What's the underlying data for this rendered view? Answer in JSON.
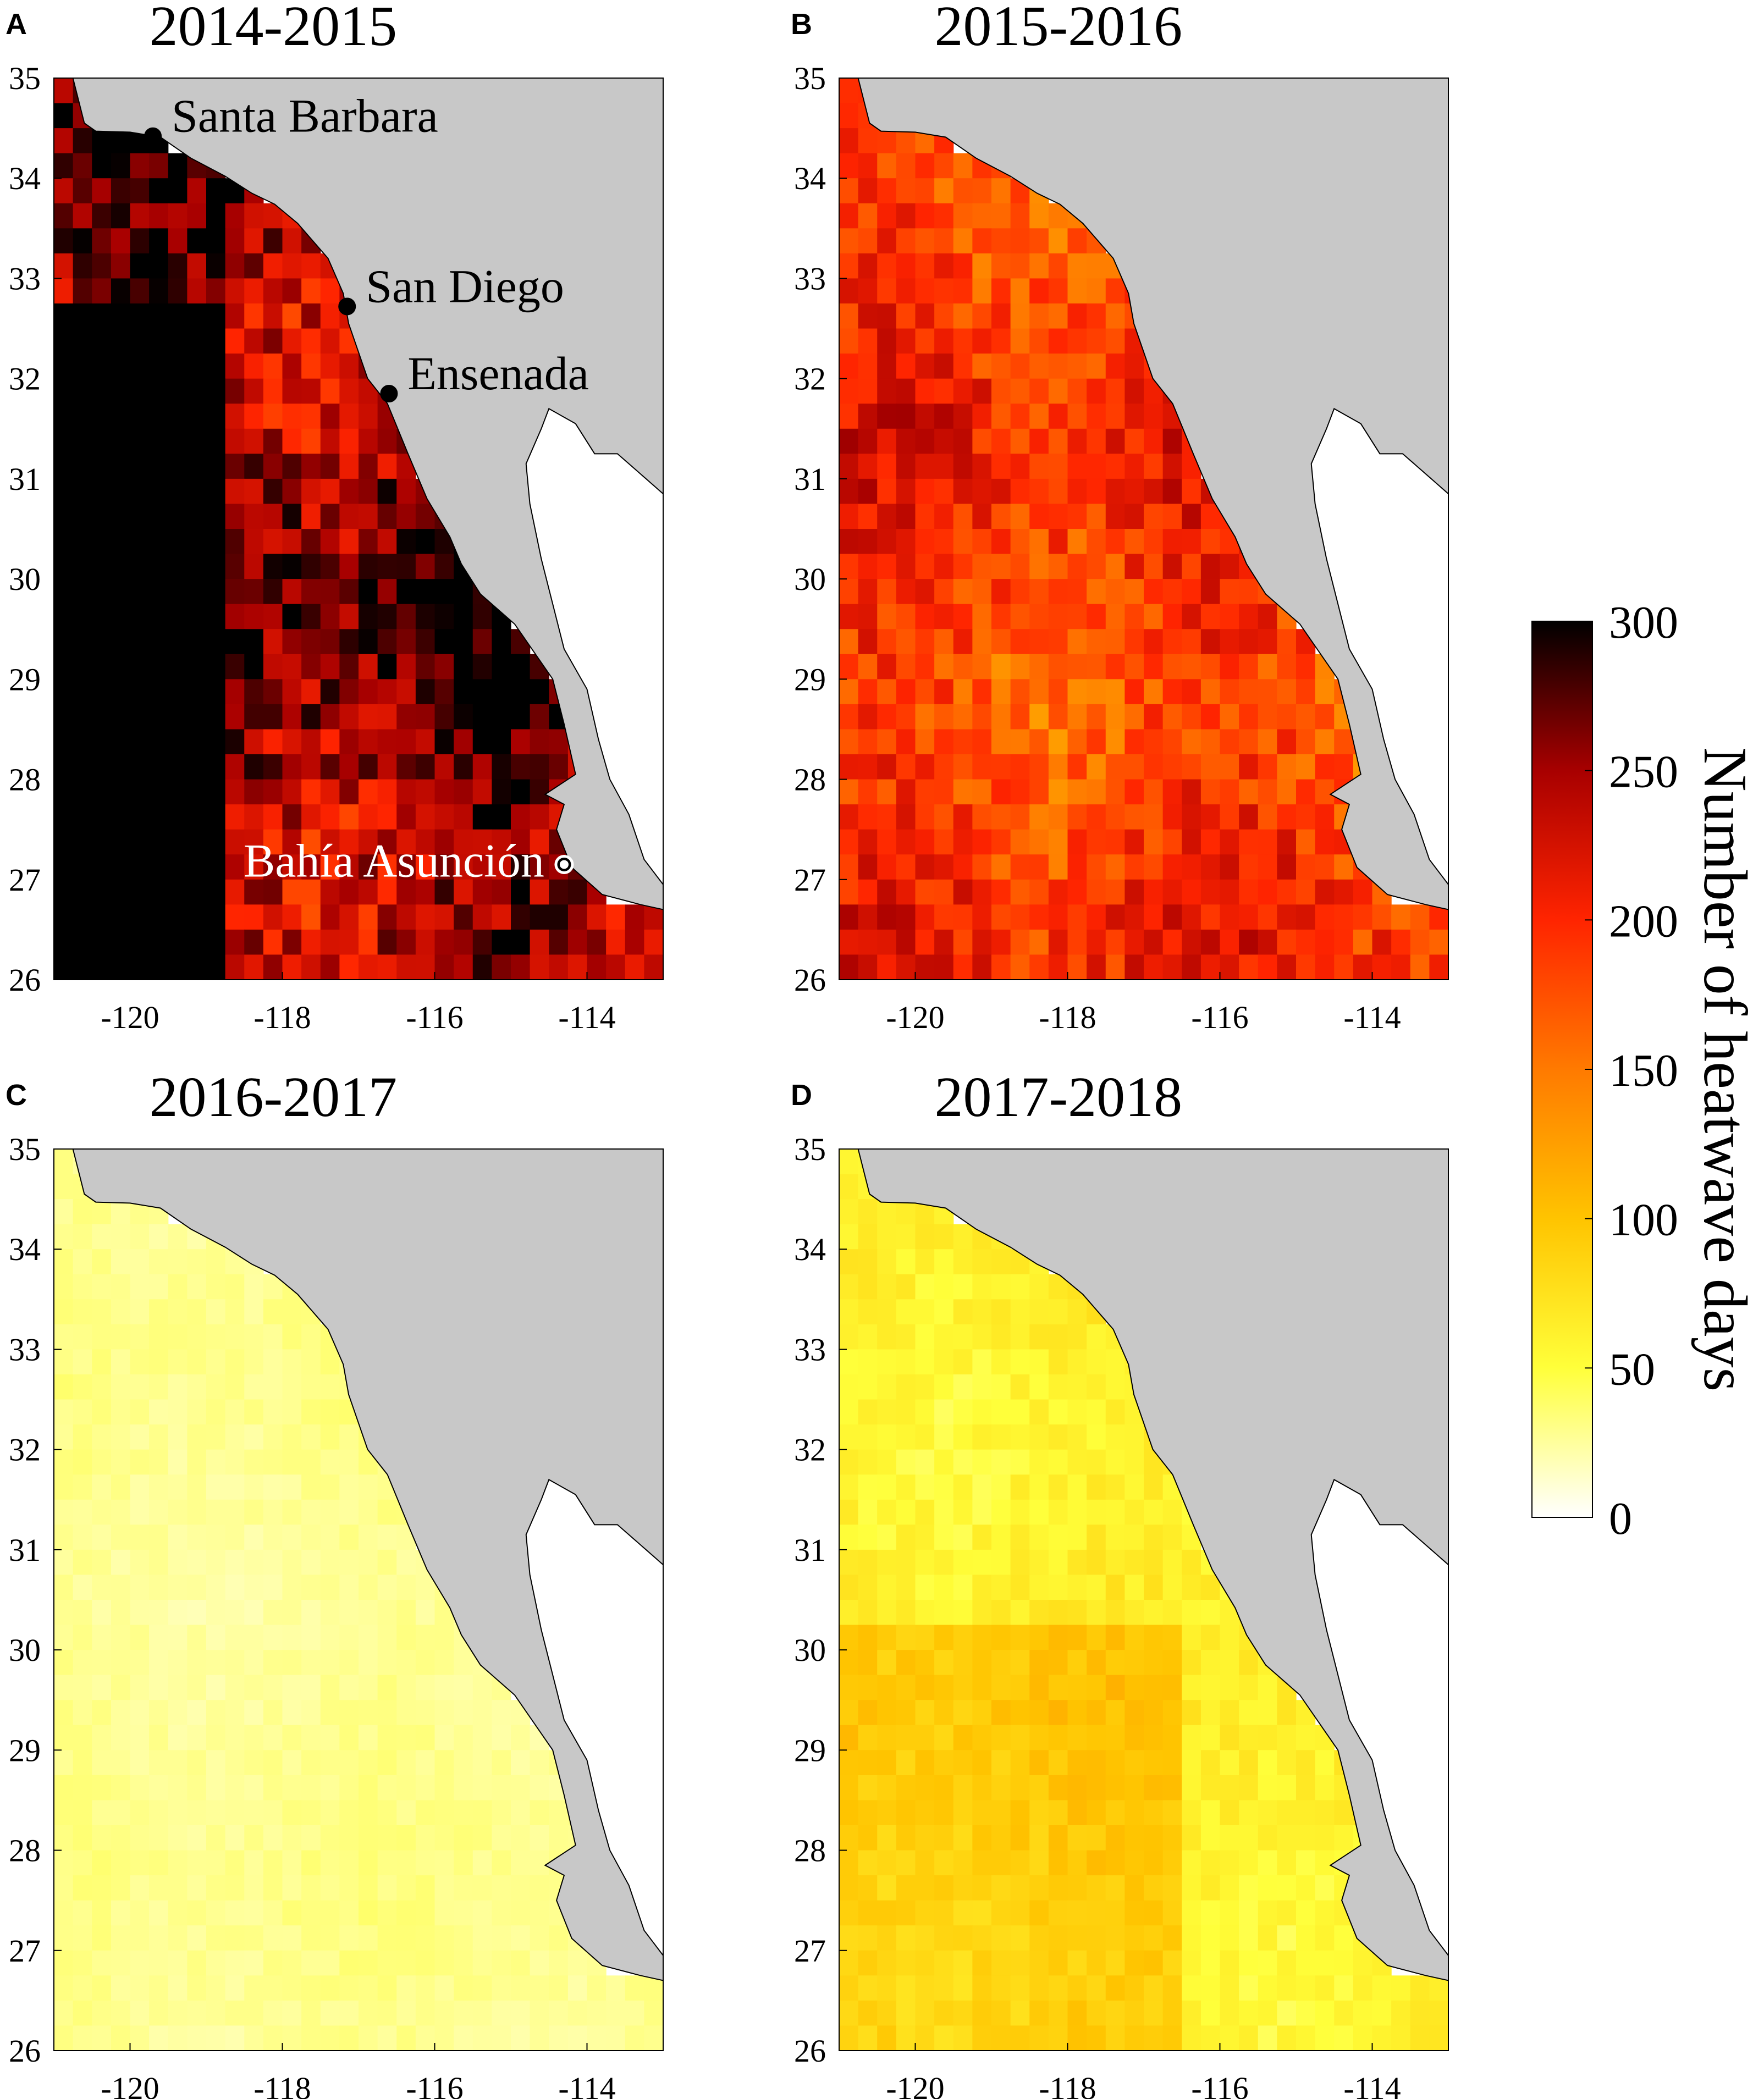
{
  "figure": {
    "colorbar": {
      "label": "Number of heatwave days",
      "ticks": [
        "0",
        "50",
        "100",
        "150",
        "200",
        "250",
        "300"
      ],
      "stops": [
        "#ffffff",
        "#ffff3a",
        "#ffc400",
        "#ff7a00",
        "#ff2400",
        "#a80000",
        "#000000"
      ]
    },
    "colors": {
      "land": "#c8c8c8",
      "gulf": "#ffffff",
      "coast_line": "#000000"
    },
    "x_ticks": [
      "-120",
      "-118",
      "-116",
      "-114"
    ],
    "y_ticks": [
      "35",
      "34",
      "33",
      "32",
      "31",
      "30",
      "29",
      "28",
      "27",
      "26"
    ],
    "panels": [
      {
        "letter": "A",
        "title": "2014-2015",
        "level": 262,
        "cities": [
          {
            "label": "Santa Barbara",
            "lon": -119.7,
            "lat": 34.42,
            "marker": "filled"
          },
          {
            "label": "San Diego",
            "lon": -117.15,
            "lat": 32.72,
            "marker": "filled"
          },
          {
            "label": "Ensenada",
            "lon": -116.6,
            "lat": 31.85,
            "marker": "filled"
          },
          {
            "label": "Bahía Asunción",
            "lon": -114.3,
            "lat": 27.15,
            "marker": "open"
          }
        ]
      },
      {
        "letter": "B",
        "title": "2015-2016",
        "level": 190,
        "cities": []
      },
      {
        "letter": "C",
        "title": "2016-2017",
        "level": 28,
        "cities": []
      },
      {
        "letter": "D",
        "title": "2017-2018",
        "level": 62,
        "cities": []
      }
    ]
  }
}
